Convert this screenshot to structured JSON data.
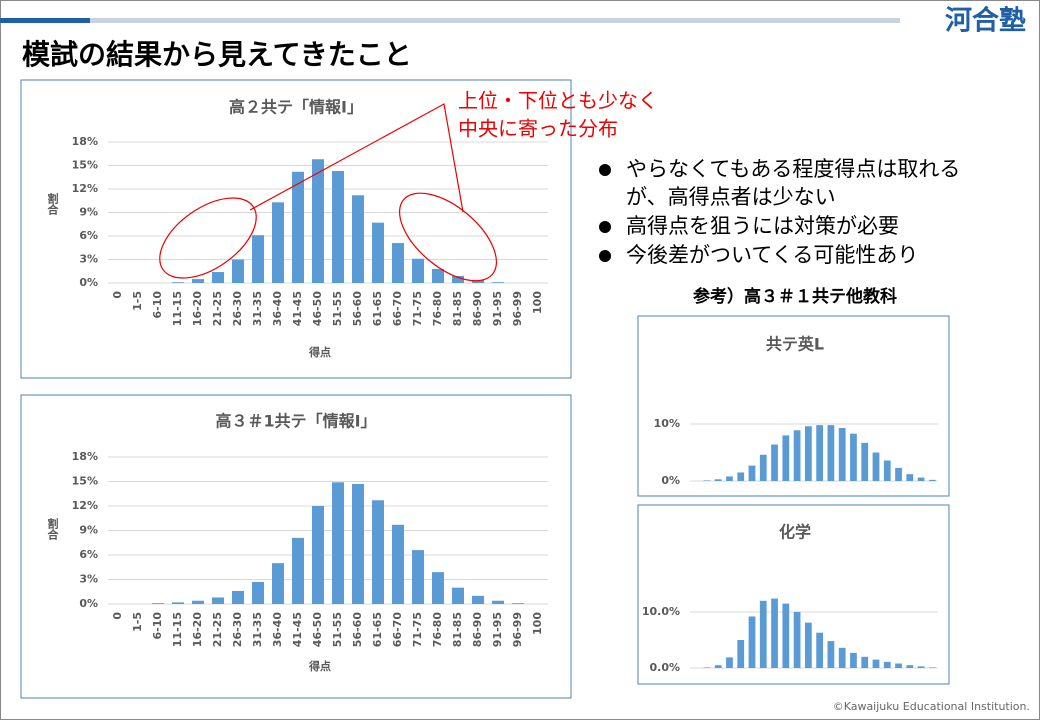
{
  "header": {
    "title": "模試の結果から見えてきたこと",
    "logo": "河合塾"
  },
  "annotation": [
    "上位・下位とも少なく",
    "中央に寄った分布"
  ],
  "bullets": [
    [
      "やらなくてもある程度得点は取れる",
      "が、高得点者は少ない"
    ],
    [
      "高得点を狙うには対策が必要"
    ],
    [
      "今後差がついてくる可能性あり"
    ]
  ],
  "reference_title": "参考）高３＃１共テ他教科",
  "footer": "©Kawaijuku Educational Institution.",
  "chart_data": [
    {
      "type": "bar",
      "title": "高２共テ「情報Ⅰ」",
      "x_label": "得点",
      "y_label": "割合",
      "color": "#5b9bd5",
      "grid": true,
      "categories": [
        "0",
        "1-5",
        "6-10",
        "11-15",
        "16-20",
        "21-25",
        "26-30",
        "31-35",
        "36-40",
        "41-45",
        "46-50",
        "51-55",
        "56-60",
        "61-65",
        "66-70",
        "71-75",
        "76-80",
        "81-85",
        "86-90",
        "91-95",
        "96-99",
        "100"
      ],
      "values": [
        0,
        0,
        0,
        0.1,
        0.5,
        1.4,
        3.0,
        6.1,
        10.3,
        14.2,
        15.8,
        14.3,
        11.2,
        7.7,
        5.1,
        3.1,
        1.8,
        0.9,
        0.4,
        0.1,
        0,
        0
      ],
      "ylim": [
        0,
        18
      ],
      "yticks": [
        {
          "value": 0,
          "label": "0%"
        },
        {
          "value": 3,
          "label": "3%"
        },
        {
          "value": 6,
          "label": "6%"
        },
        {
          "value": 9,
          "label": "9%"
        },
        {
          "value": 12,
          "label": "12%"
        },
        {
          "value": 15,
          "label": "15%"
        },
        {
          "value": 18,
          "label": "18%"
        }
      ]
    },
    {
      "type": "bar",
      "title": "高３＃1共テ「情報Ⅰ」",
      "x_label": "得点",
      "y_label": "割合",
      "color": "#5b9bd5",
      "grid": true,
      "categories": [
        "0",
        "1-5",
        "6-10",
        "11-15",
        "16-20",
        "21-25",
        "26-30",
        "31-35",
        "36-40",
        "41-45",
        "46-50",
        "51-55",
        "56-60",
        "61-65",
        "66-70",
        "71-75",
        "76-80",
        "81-85",
        "86-90",
        "91-95",
        "96-99",
        "100"
      ],
      "values": [
        0,
        0,
        0.1,
        0.2,
        0.4,
        0.8,
        1.6,
        2.7,
        5.0,
        8.1,
        12.0,
        14.9,
        14.7,
        12.7,
        9.7,
        6.6,
        3.9,
        2.0,
        1.0,
        0.4,
        0.1,
        0
      ],
      "ylim": [
        0,
        18
      ],
      "yticks": [
        {
          "value": 0,
          "label": "0%"
        },
        {
          "value": 3,
          "label": "3%"
        },
        {
          "value": 6,
          "label": "6%"
        },
        {
          "value": 9,
          "label": "9%"
        },
        {
          "value": 12,
          "label": "12%"
        },
        {
          "value": 15,
          "label": "15%"
        },
        {
          "value": 18,
          "label": "18%"
        }
      ]
    },
    {
      "type": "bar",
      "title": "共テ英L",
      "color": "#5b9bd5",
      "grid": true,
      "categories": [
        null,
        null,
        null,
        null,
        null,
        null,
        null,
        null,
        null,
        null,
        null,
        null,
        null,
        null,
        null,
        null,
        null,
        null,
        null,
        null,
        null,
        null
      ],
      "values": [
        0,
        0.1,
        0.3,
        0.8,
        1.5,
        2.7,
        4.6,
        6.4,
        8.0,
        8.9,
        9.6,
        9.8,
        9.8,
        9.3,
        8.3,
        6.7,
        5.0,
        3.6,
        2.3,
        1.2,
        0.6,
        0.2
      ],
      "ylim": [
        0,
        10
      ],
      "yticks": [
        {
          "value": 0,
          "label": "0%"
        },
        {
          "value": 10,
          "label": "10%"
        }
      ]
    },
    {
      "type": "bar",
      "title": "化学",
      "color": "#5b9bd5",
      "grid": true,
      "categories": [
        null,
        null,
        null,
        null,
        null,
        null,
        null,
        null,
        null,
        null,
        null,
        null,
        null,
        null,
        null,
        null,
        null,
        null,
        null,
        null,
        null,
        null
      ],
      "values": [
        0,
        0.1,
        0.5,
        1.9,
        5.0,
        9.2,
        12.0,
        12.4,
        11.5,
        10.0,
        8.1,
        6.3,
        4.8,
        3.6,
        2.7,
        2.0,
        1.5,
        1.1,
        0.8,
        0.5,
        0.3,
        0.1
      ],
      "ylim": [
        0,
        15
      ],
      "yticks": [
        {
          "value": 0,
          "label": "0.0%"
        },
        {
          "value": 10,
          "label": "10.0%"
        }
      ]
    }
  ]
}
